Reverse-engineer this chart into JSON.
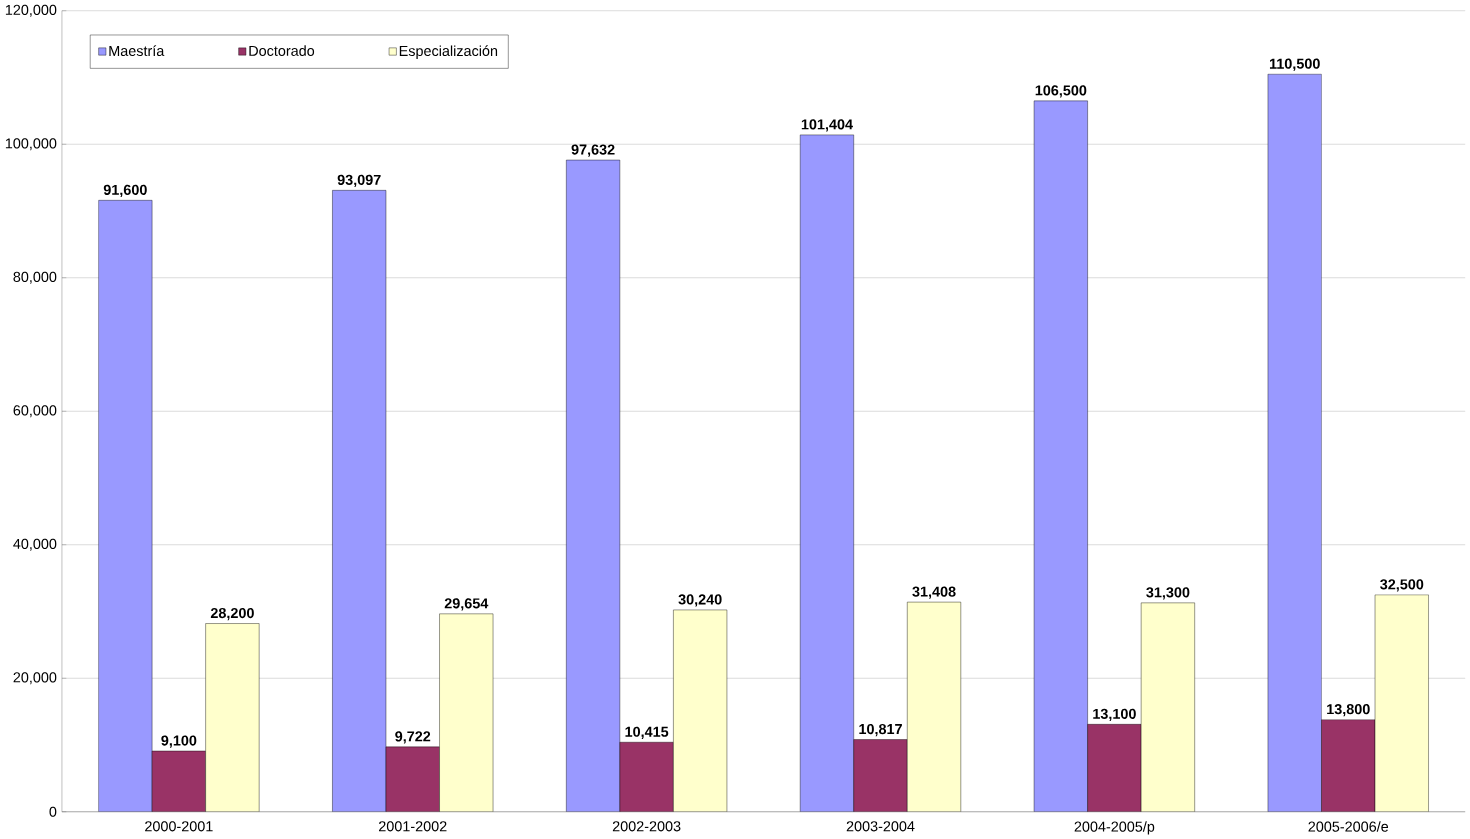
{
  "chart_data": {
    "type": "bar",
    "categories": [
      "2000-2001",
      "2001-2002",
      "2002-2003",
      "2003-2004",
      "2004-2005/p",
      "2005-2006/e"
    ],
    "series": [
      {
        "name": "Maestría",
        "color": "#9999ff",
        "values": [
          91600,
          93097,
          97632,
          101404,
          106500,
          110500
        ],
        "value_labels": [
          "91,600",
          "93,097",
          "97,632",
          "101,404",
          "106,500",
          "110,500"
        ]
      },
      {
        "name": "Doctorado",
        "color": "#993366",
        "values": [
          9100,
          9722,
          10415,
          10817,
          13100,
          13800
        ],
        "value_labels": [
          "9,100",
          "9,722",
          "10,415",
          "10,817",
          "13,100",
          "13,800"
        ]
      },
      {
        "name": "Especialización",
        "color": "#ffffcc",
        "values": [
          28200,
          29654,
          30240,
          31408,
          31300,
          32500
        ],
        "value_labels": [
          "28,200",
          "29,654",
          "30,240",
          "31,408",
          "31,300",
          "32,500"
        ]
      }
    ],
    "ylim": [
      0,
      120000
    ],
    "yticks": [
      {
        "value": 0,
        "label": "0"
      },
      {
        "value": 20000,
        "label": "20,000"
      },
      {
        "value": 40000,
        "label": "40,000"
      },
      {
        "value": 60000,
        "label": "60,000"
      },
      {
        "value": 80000,
        "label": "80,000"
      },
      {
        "value": 100000,
        "label": "100,000"
      },
      {
        "value": 120000,
        "label": "120,000"
      }
    ],
    "grid": "y",
    "legend": "top left"
  }
}
